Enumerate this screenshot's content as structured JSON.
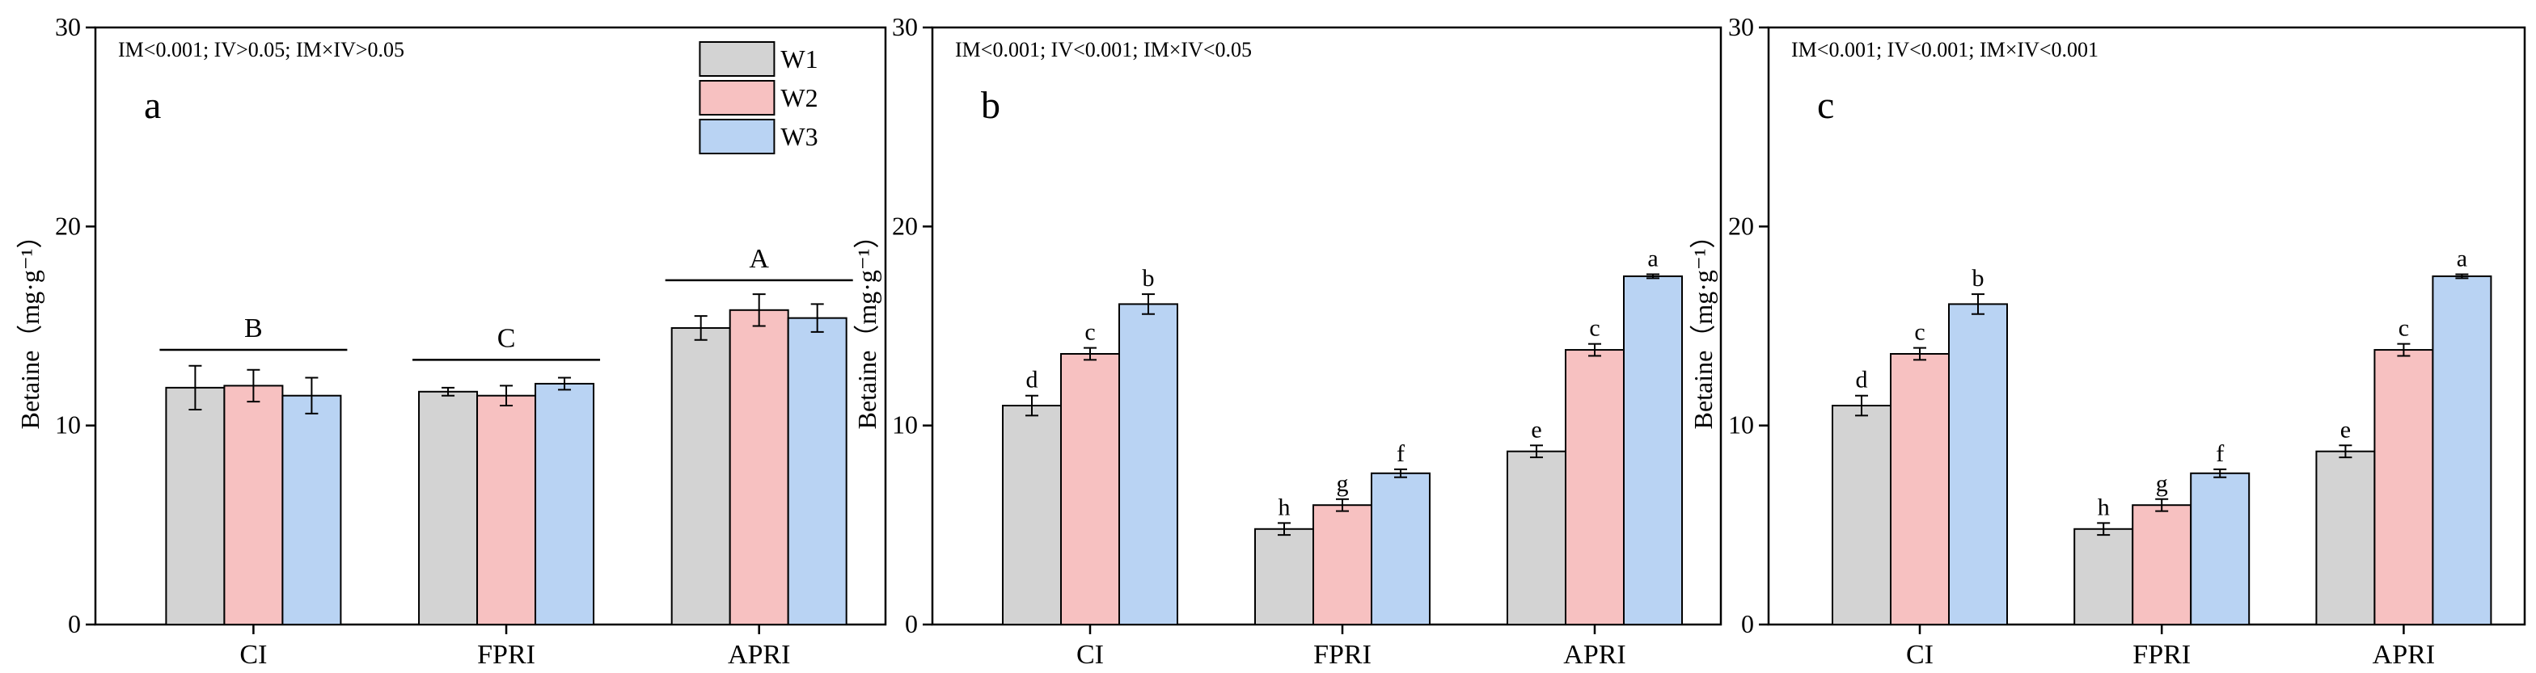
{
  "colors": {
    "W1": "#d3d3d3",
    "W2": "#f7c1c1",
    "W3": "#b9d3f3",
    "stroke": "#000000"
  },
  "chart_data": [
    {
      "type": "bar",
      "panel_label": "a",
      "stats_text": "IM<0.001; IV>0.05; IM×IV>0.05",
      "ylabel": "Betaine（mg·g⁻¹）",
      "xlabel": "",
      "ylim": [
        0,
        30
      ],
      "yticks": [
        "0",
        "10",
        "20",
        "30"
      ],
      "categories": [
        "CI",
        "FPRI",
        "APRI"
      ],
      "legend": {
        "position": "top-right",
        "entries": [
          "W1",
          "W2",
          "W3"
        ]
      },
      "series": [
        {
          "name": "W1",
          "values": [
            11.9,
            11.7,
            14.9
          ],
          "errors": [
            1.1,
            0.2,
            0.6
          ],
          "letters": [
            "",
            "",
            ""
          ]
        },
        {
          "name": "W2",
          "values": [
            12.0,
            11.5,
            15.8
          ],
          "errors": [
            0.8,
            0.5,
            0.8
          ],
          "letters": [
            "",
            "",
            ""
          ]
        },
        {
          "name": "W3",
          "values": [
            11.5,
            12.1,
            15.4
          ],
          "errors": [
            0.9,
            0.3,
            0.7
          ],
          "letters": [
            "",
            "",
            ""
          ]
        }
      ],
      "group_letters": [
        {
          "text": "B",
          "y": 13.8
        },
        {
          "text": "C",
          "y": 13.3
        },
        {
          "text": "A",
          "y": 17.3
        }
      ]
    },
    {
      "type": "bar",
      "panel_label": "b",
      "stats_text": "IM<0.001; IV<0.001; IM×IV<0.05",
      "ylabel": "Betaine（mg·g⁻¹）",
      "xlabel": "",
      "ylim": [
        0,
        30
      ],
      "yticks": [
        "0",
        "10",
        "20",
        "30"
      ],
      "categories": [
        "CI",
        "FPRI",
        "APRI"
      ],
      "series": [
        {
          "name": "W1",
          "values": [
            11.0,
            4.8,
            8.7
          ],
          "errors": [
            0.5,
            0.3,
            0.3
          ],
          "letters": [
            "d",
            "h",
            "e"
          ]
        },
        {
          "name": "W2",
          "values": [
            13.6,
            6.0,
            13.8
          ],
          "errors": [
            0.3,
            0.3,
            0.3
          ],
          "letters": [
            "c",
            "g",
            "c"
          ]
        },
        {
          "name": "W3",
          "values": [
            16.1,
            7.6,
            17.5
          ],
          "errors": [
            0.5,
            0.2,
            0.1
          ],
          "letters": [
            "b",
            "f",
            "a"
          ]
        }
      ]
    },
    {
      "type": "bar",
      "panel_label": "c",
      "stats_text": "IM<0.001; IV<0.001; IM×IV<0.001",
      "ylabel": "Betaine（mg·g⁻¹）",
      "xlabel": "",
      "ylim": [
        0,
        30
      ],
      "yticks": [
        "0",
        "10",
        "20",
        "30"
      ],
      "categories": [
        "CI",
        "FPRI",
        "APRI"
      ],
      "series": [
        {
          "name": "W1",
          "values": [
            11.0,
            4.8,
            8.7
          ],
          "errors": [
            0.5,
            0.3,
            0.3
          ],
          "letters": [
            "d",
            "h",
            "e"
          ]
        },
        {
          "name": "W2",
          "values": [
            13.6,
            6.0,
            13.8
          ],
          "errors": [
            0.3,
            0.3,
            0.3
          ],
          "letters": [
            "c",
            "g",
            "c"
          ]
        },
        {
          "name": "W3",
          "values": [
            16.1,
            7.6,
            17.5
          ],
          "errors": [
            0.5,
            0.2,
            0.1
          ],
          "letters": [
            "b",
            "f",
            "a"
          ]
        }
      ]
    }
  ]
}
